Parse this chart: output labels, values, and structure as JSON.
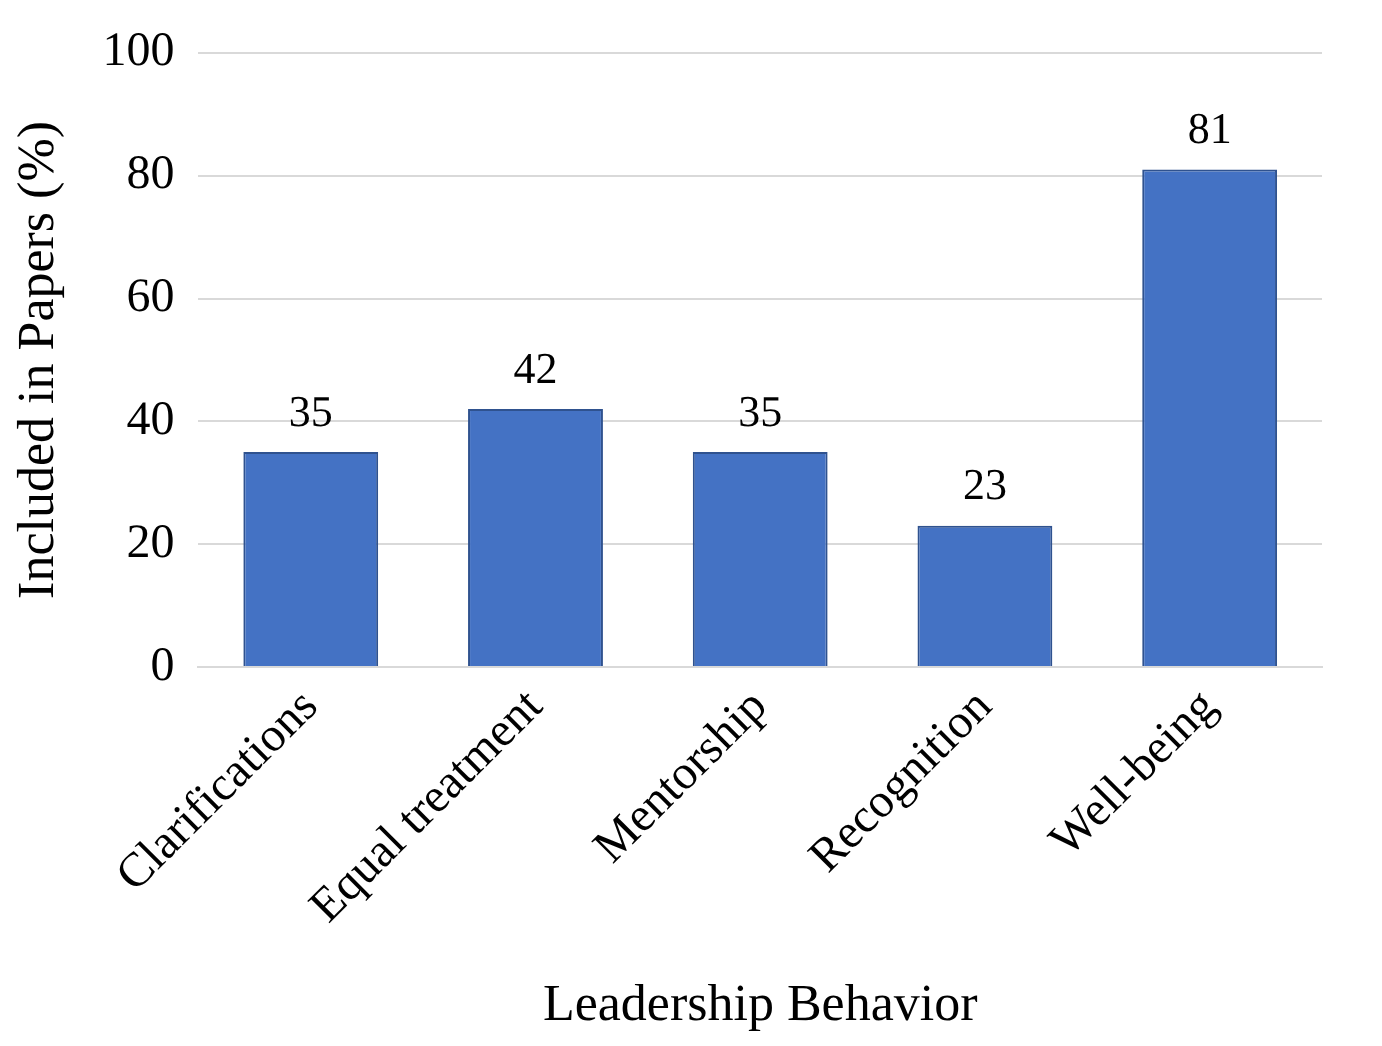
{
  "chart_data": {
    "type": "bar",
    "xlabel": "Leadership Behavior",
    "ylabel": "Included in Papers (%)",
    "categories": [
      "Clarifications",
      "Equal treatment",
      "Mentorship",
      "Recognition",
      "Well-being"
    ],
    "values": [
      35,
      42,
      35,
      23,
      81
    ],
    "color": "#4472c4",
    "ylim": [
      0,
      100
    ],
    "yticks": [
      0,
      20,
      40,
      60,
      80,
      100
    ],
    "grid": "y",
    "data_labels": true,
    "legend": false
  }
}
